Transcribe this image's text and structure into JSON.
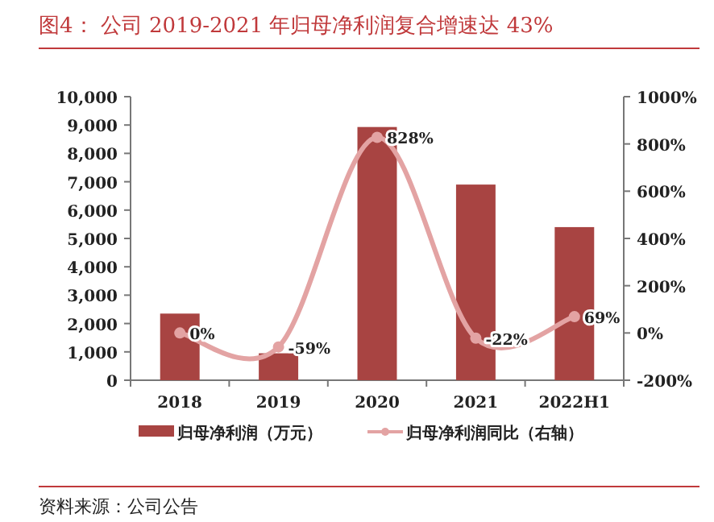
{
  "chart_data": {
    "type": "bar",
    "title": "图4：  公司 2019-2021 年归母净利润复合增速达 43%",
    "categories": [
      "2018",
      "2019",
      "2020",
      "2021",
      "2022H1"
    ],
    "series": [
      {
        "name": "归母净利润（万元）",
        "color": "#a84442",
        "values": [
          2350,
          950,
          8930,
          6900,
          5400
        ]
      },
      {
        "name": "归母净利润同比（右轴）",
        "type": "line",
        "axis": "y2",
        "color": "#e3a3a3",
        "marker": "circle",
        "values": [
          0,
          -59,
          828,
          -22,
          69
        ],
        "value_labels": [
          "0%",
          "-59%",
          "828%",
          "-22%",
          "69%"
        ]
      }
    ],
    "ylim": [
      0,
      10000
    ],
    "yticks": [
      {
        "value": 0,
        "label": "0"
      },
      {
        "value": 1000,
        "label": "1,000"
      },
      {
        "value": 2000,
        "label": "2,000"
      },
      {
        "value": 3000,
        "label": "3,000"
      },
      {
        "value": 4000,
        "label": "4,000"
      },
      {
        "value": 5000,
        "label": "5,000"
      },
      {
        "value": 6000,
        "label": "6,000"
      },
      {
        "value": 7000,
        "label": "7,000"
      },
      {
        "value": 8000,
        "label": "8,000"
      },
      {
        "value": 9000,
        "label": "9,000"
      },
      {
        "value": 10000,
        "label": "10,000"
      }
    ],
    "y2lim": [
      -200,
      1000
    ],
    "y2ticks": [
      {
        "value": -200,
        "label": "-200%"
      },
      {
        "value": 0,
        "label": "0%"
      },
      {
        "value": 200,
        "label": "200%"
      },
      {
        "value": 400,
        "label": "400%"
      },
      {
        "value": 600,
        "label": "600%"
      },
      {
        "value": 800,
        "label": "800%"
      },
      {
        "value": 1000,
        "label": "1000%"
      }
    ],
    "grid": false,
    "legend": "bottom",
    "annotations": [
      "资料来源：公司公告"
    ]
  }
}
